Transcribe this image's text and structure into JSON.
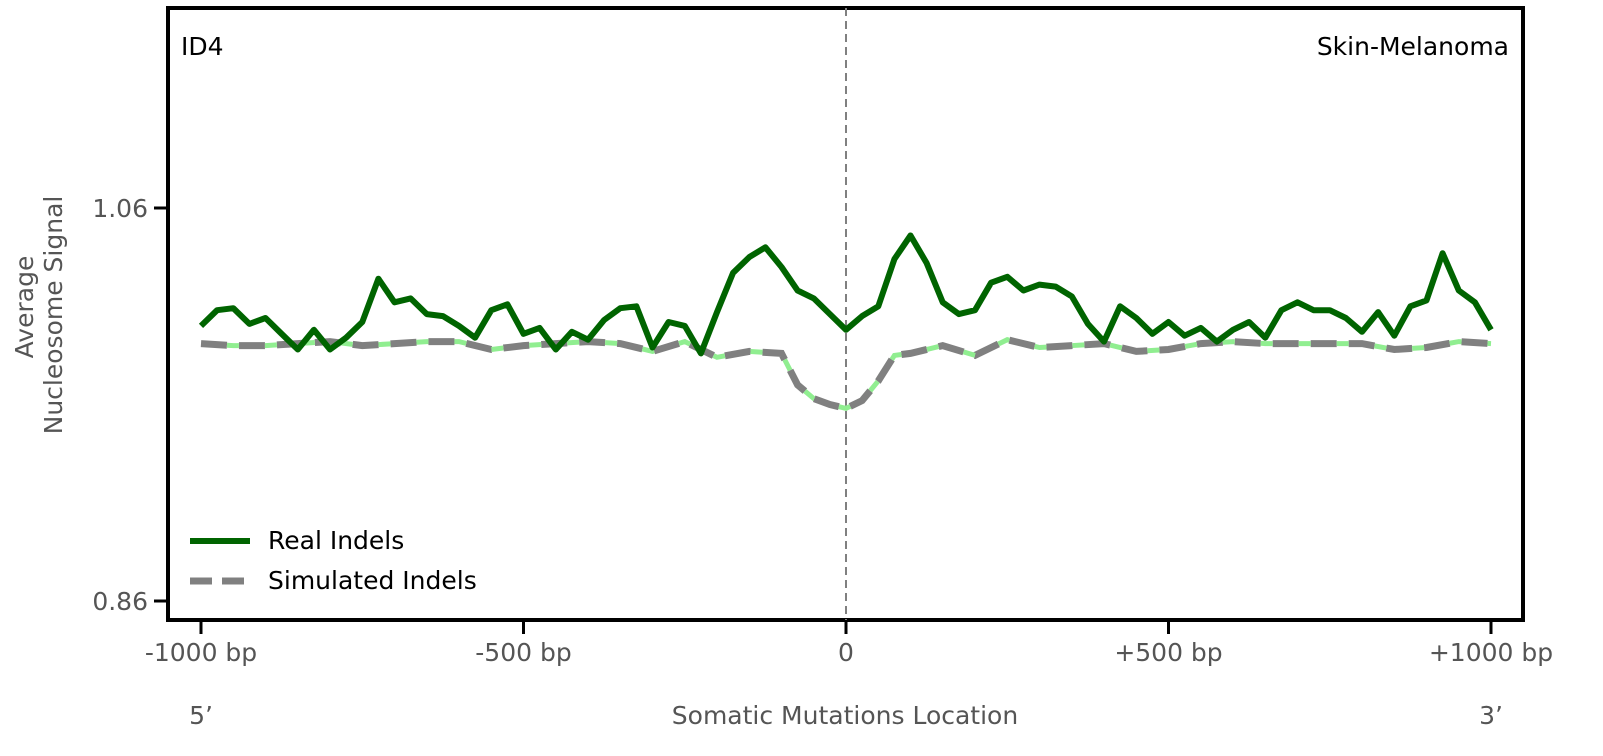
{
  "chart_data": {
    "type": "line",
    "signature": "ID4",
    "cancer_type": "Skin-Melanoma",
    "ylabel": [
      "Average",
      "Nucleosome Signal"
    ],
    "xlabel": "Somatic Mutations Location",
    "x_end_labels": {
      "left": "5’",
      "right": "3’"
    },
    "xlim": [
      -1000,
      1000
    ],
    "ylim": [
      0.86,
      1.06
    ],
    "x_ticks": [
      {
        "value": -1000,
        "label": "-1000 bp"
      },
      {
        "value": -500,
        "label": "-500 bp"
      },
      {
        "value": 0,
        "label": "0"
      },
      {
        "value": 500,
        "label": "+500 bp"
      },
      {
        "value": 1000,
        "label": "+1000 bp"
      }
    ],
    "y_ticks": [
      {
        "value": 0.86,
        "label": "0.86"
      },
      {
        "value": 1.06,
        "label": "1.06"
      }
    ],
    "center_line_x": 0,
    "grid": false,
    "legend_position": "lower-left",
    "series": [
      {
        "name": "Real Indels",
        "color": "#006400",
        "style": "solid",
        "x": [
          -1000,
          -975,
          -950,
          -925,
          -900,
          -875,
          -850,
          -825,
          -800,
          -775,
          -750,
          -725,
          -700,
          -675,
          -650,
          -625,
          -600,
          -575,
          -550,
          -525,
          -500,
          -475,
          -450,
          -425,
          -400,
          -375,
          -350,
          -325,
          -300,
          -275,
          -250,
          -225,
          -200,
          -175,
          -150,
          -125,
          -100,
          -75,
          -50,
          -25,
          0,
          25,
          50,
          75,
          100,
          125,
          150,
          175,
          200,
          225,
          250,
          275,
          300,
          325,
          350,
          375,
          400,
          425,
          450,
          475,
          500,
          525,
          550,
          575,
          600,
          625,
          650,
          675,
          700,
          725,
          750,
          775,
          800,
          825,
          850,
          875,
          900,
          925,
          950,
          975,
          1000
        ],
        "values": [
          1.0,
          1.008,
          1.009,
          1.001,
          1.004,
          0.996,
          0.988,
          0.998,
          0.988,
          0.994,
          1.002,
          1.024,
          1.012,
          1.014,
          1.006,
          1.005,
          1.0,
          0.994,
          1.008,
          1.011,
          0.996,
          0.999,
          0.988,
          0.997,
          0.993,
          1.003,
          1.009,
          1.01,
          0.989,
          1.002,
          1.0,
          0.986,
          1.007,
          1.027,
          1.035,
          1.04,
          1.03,
          1.018,
          1.014,
          1.006,
          0.998,
          1.005,
          1.01,
          1.034,
          1.046,
          1.032,
          1.012,
          1.006,
          1.008,
          1.022,
          1.025,
          1.018,
          1.021,
          1.02,
          1.015,
          1.001,
          0.992,
          1.01,
          1.004,
          0.996,
          1.002,
          0.995,
          0.999,
          0.992,
          0.998,
          1.002,
          0.994,
          1.008,
          1.012,
          1.008,
          1.008,
          1.004,
          0.997,
          1.007,
          0.995,
          1.01,
          1.013,
          1.037,
          1.018,
          1.012,
          0.998
        ]
      },
      {
        "name": "Simulated Indels",
        "color": "#808080",
        "accent_color": "#90EE90",
        "style": "dashed",
        "x": [
          -1000,
          -950,
          -900,
          -850,
          -800,
          -750,
          -700,
          -650,
          -600,
          -550,
          -500,
          -450,
          -400,
          -350,
          -300,
          -250,
          -200,
          -150,
          -100,
          -75,
          -50,
          -25,
          0,
          25,
          50,
          75,
          100,
          150,
          200,
          250,
          300,
          350,
          400,
          450,
          500,
          550,
          600,
          650,
          700,
          750,
          800,
          850,
          900,
          950,
          1000
        ],
        "values": [
          0.991,
          0.99,
          0.99,
          0.991,
          0.992,
          0.99,
          0.991,
          0.992,
          0.992,
          0.988,
          0.99,
          0.991,
          0.992,
          0.991,
          0.987,
          0.992,
          0.984,
          0.987,
          0.986,
          0.97,
          0.963,
          0.96,
          0.958,
          0.962,
          0.972,
          0.985,
          0.986,
          0.99,
          0.985,
          0.993,
          0.989,
          0.99,
          0.991,
          0.987,
          0.988,
          0.991,
          0.992,
          0.991,
          0.991,
          0.991,
          0.991,
          0.988,
          0.989,
          0.992,
          0.991
        ]
      }
    ]
  }
}
